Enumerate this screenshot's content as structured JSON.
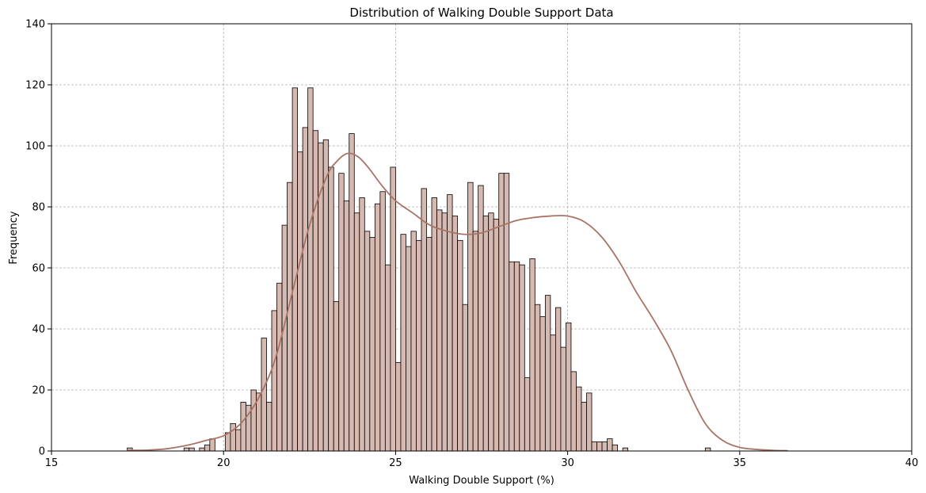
{
  "chart_data": {
    "type": "bar",
    "title": "Distribution of Walking Double Support Data",
    "xlabel": "Walking Double Support (%)",
    "ylabel": "Frequency",
    "xlim": [
      15,
      40
    ],
    "ylim": [
      0,
      140
    ],
    "xticks": [
      15,
      20,
      25,
      30,
      35,
      40
    ],
    "yticks": [
      0,
      20,
      40,
      60,
      80,
      100,
      120,
      140
    ],
    "grid": true,
    "bin_start": 17.2,
    "bin_width": 0.15,
    "values": [
      1,
      0,
      0,
      0,
      0,
      0,
      0,
      0,
      0,
      0,
      0,
      1,
      1,
      0,
      1,
      2,
      4,
      0,
      0,
      6,
      9,
      7,
      16,
      15,
      20,
      19,
      37,
      16,
      46,
      55,
      74,
      88,
      119,
      98,
      106,
      119,
      105,
      101,
      102,
      93,
      49,
      91,
      82,
      104,
      78,
      83,
      72,
      70,
      81,
      85,
      61,
      93,
      29,
      71,
      67,
      72,
      69,
      86,
      70,
      83,
      79,
      78,
      84,
      77,
      69,
      48,
      88,
      72,
      87,
      77,
      78,
      76,
      91,
      91,
      62,
      62,
      61,
      24,
      63,
      48,
      44,
      51,
      38,
      47,
      34,
      42,
      26,
      21,
      16,
      19,
      3,
      3,
      3,
      4,
      2,
      0,
      1,
      0,
      0,
      0,
      0,
      0,
      0,
      0,
      0,
      0,
      0,
      0,
      0,
      0,
      0,
      0,
      1
    ],
    "kde": {
      "x": [
        17.2,
        17.8,
        18.4,
        19.0,
        19.5,
        20.0,
        20.5,
        21.0,
        21.5,
        22.0,
        22.5,
        23.0,
        23.3,
        23.6,
        23.9,
        24.2,
        24.6,
        25.0,
        25.5,
        26.0,
        26.5,
        27.0,
        27.5,
        28.0,
        28.5,
        29.0,
        29.5,
        30.0,
        30.5,
        31.0,
        31.5,
        32.0,
        32.5,
        33.0,
        33.5,
        34.0,
        34.5,
        35.0,
        35.5,
        36.0,
        36.4
      ],
      "y": [
        0.2,
        0.3,
        0.8,
        2.0,
        3.5,
        5.0,
        9.0,
        17.0,
        30.0,
        52.0,
        74.0,
        90.0,
        95.0,
        97.5,
        96.5,
        93.0,
        87.0,
        82.0,
        78.0,
        74.0,
        72.0,
        71.0,
        71.5,
        73.5,
        75.5,
        76.5,
        77.0,
        77.0,
        75.0,
        70.0,
        62.0,
        52.0,
        43.0,
        33.0,
        20.0,
        9.0,
        3.5,
        1.2,
        0.5,
        0.2,
        0.1
      ]
    },
    "colors": {
      "bar_fill": "#d6b9b0",
      "bar_edge": "#000000",
      "kde_line": "#a87467",
      "grid": "#b0b0b0"
    }
  }
}
